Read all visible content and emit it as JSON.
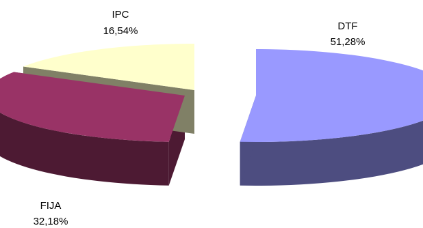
{
  "chart_data": {
    "type": "pie",
    "style": "3d-exploded",
    "slices": [
      {
        "name": "DTF",
        "label": "DTF",
        "percent_label": "51,28%",
        "value": 51.28,
        "color": "#9999FF",
        "side_color": "#4D4D80"
      },
      {
        "name": "FIJA",
        "label": "FIJA",
        "percent_label": "32,18%",
        "value": 32.18,
        "color": "#993366",
        "side_color": "#4D1A33"
      },
      {
        "name": "IPC",
        "label": "IPC",
        "percent_label": "16,54%",
        "value": 16.54,
        "color": "#FFFFCC",
        "side_color": "#808066"
      }
    ],
    "legend": "none"
  }
}
